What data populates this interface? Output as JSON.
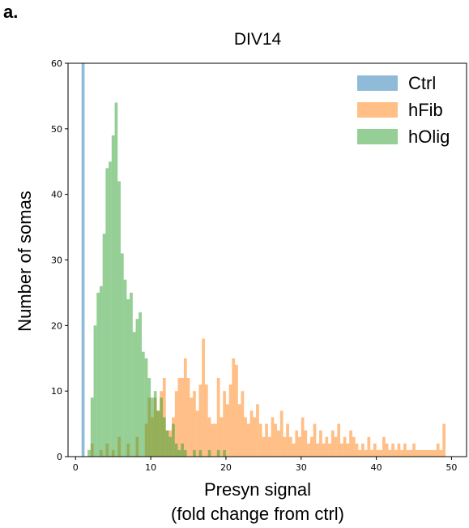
{
  "panel_label": "a.",
  "chart_data": {
    "type": "histogram",
    "title": "DIV14",
    "xlabel_line1": "Presyn signal",
    "xlabel_line2": "(fold change from ctrl)",
    "ylabel": "Number of somas",
    "xlim": [
      -1,
      52
    ],
    "ylim": [
      0,
      60
    ],
    "xticks": [
      0,
      10,
      20,
      30,
      40,
      50
    ],
    "yticks": [
      0,
      10,
      20,
      30,
      40,
      50,
      60
    ],
    "grid": false,
    "legend_position": "top-right",
    "series": [
      {
        "name": "Ctrl",
        "color": "#1f77b4",
        "bin_width": 0.4,
        "bins": [
          [
            0.8,
            60
          ]
        ]
      },
      {
        "name": "hFib",
        "color": "#ff7f0e",
        "bin_width": 0.4,
        "bins": [
          [
            2.0,
            2
          ],
          [
            3.2,
            1
          ],
          [
            4.0,
            2
          ],
          [
            4.8,
            1
          ],
          [
            5.6,
            3
          ],
          [
            6.8,
            2
          ],
          [
            8.0,
            3
          ],
          [
            9.2,
            5
          ],
          [
            9.6,
            9
          ],
          [
            10.0,
            6
          ],
          [
            10.4,
            9
          ],
          [
            10.8,
            7
          ],
          [
            11.2,
            10
          ],
          [
            11.6,
            12
          ],
          [
            12.0,
            4
          ],
          [
            12.4,
            4
          ],
          [
            12.8,
            6
          ],
          [
            13.2,
            10
          ],
          [
            13.6,
            12
          ],
          [
            14.0,
            12
          ],
          [
            14.4,
            15
          ],
          [
            14.8,
            12
          ],
          [
            15.2,
            9
          ],
          [
            15.6,
            10
          ],
          [
            16.0,
            7
          ],
          [
            16.4,
            11
          ],
          [
            16.8,
            18
          ],
          [
            17.2,
            11
          ],
          [
            17.6,
            6
          ],
          [
            18.0,
            5
          ],
          [
            18.4,
            5
          ],
          [
            18.8,
            12
          ],
          [
            19.2,
            6
          ],
          [
            19.6,
            10
          ],
          [
            20.0,
            8
          ],
          [
            20.4,
            11
          ],
          [
            20.8,
            15
          ],
          [
            21.2,
            14
          ],
          [
            21.6,
            8
          ],
          [
            22.0,
            10
          ],
          [
            22.4,
            6
          ],
          [
            22.8,
            5
          ],
          [
            23.2,
            7
          ],
          [
            23.6,
            6
          ],
          [
            24.0,
            8
          ],
          [
            24.4,
            5
          ],
          [
            24.8,
            3
          ],
          [
            25.2,
            5
          ],
          [
            25.6,
            3
          ],
          [
            26.0,
            6
          ],
          [
            26.4,
            5
          ],
          [
            26.8,
            4
          ],
          [
            27.2,
            7
          ],
          [
            27.6,
            3
          ],
          [
            28.0,
            5
          ],
          [
            28.4,
            3
          ],
          [
            28.8,
            2
          ],
          [
            29.2,
            4
          ],
          [
            29.6,
            3
          ],
          [
            30.0,
            6
          ],
          [
            30.4,
            4
          ],
          [
            30.8,
            2
          ],
          [
            31.2,
            3
          ],
          [
            31.6,
            5
          ],
          [
            32.0,
            2
          ],
          [
            32.4,
            4
          ],
          [
            32.8,
            2
          ],
          [
            33.2,
            3
          ],
          [
            33.6,
            2
          ],
          [
            34.0,
            4
          ],
          [
            34.4,
            3
          ],
          [
            34.8,
            5
          ],
          [
            35.2,
            2
          ],
          [
            35.6,
            3
          ],
          [
            36.0,
            2
          ],
          [
            36.4,
            4
          ],
          [
            36.8,
            3
          ],
          [
            37.2,
            2
          ],
          [
            37.6,
            1
          ],
          [
            38.0,
            2
          ],
          [
            38.4,
            1
          ],
          [
            38.8,
            3
          ],
          [
            39.2,
            1
          ],
          [
            39.6,
            2
          ],
          [
            40.0,
            1
          ],
          [
            40.4,
            1
          ],
          [
            40.8,
            3
          ],
          [
            41.2,
            2
          ],
          [
            41.6,
            1
          ],
          [
            42.0,
            2
          ],
          [
            42.4,
            1
          ],
          [
            42.8,
            2
          ],
          [
            43.2,
            1
          ],
          [
            43.6,
            2
          ],
          [
            44.0,
            1
          ],
          [
            44.4,
            1
          ],
          [
            44.8,
            2
          ],
          [
            45.2,
            1
          ],
          [
            45.6,
            1
          ],
          [
            46.0,
            1
          ],
          [
            46.4,
            1
          ],
          [
            46.8,
            1
          ],
          [
            47.2,
            1
          ],
          [
            47.6,
            1
          ],
          [
            48.0,
            2
          ],
          [
            48.4,
            1
          ],
          [
            48.8,
            5
          ]
        ]
      },
      {
        "name": "hOlig",
        "color": "#2ca02c",
        "bin_width": 0.4,
        "bins": [
          [
            1.6,
            1
          ],
          [
            2.0,
            9
          ],
          [
            2.4,
            20
          ],
          [
            2.8,
            25
          ],
          [
            3.2,
            26
          ],
          [
            3.6,
            34
          ],
          [
            4.0,
            44
          ],
          [
            4.4,
            45
          ],
          [
            4.8,
            49
          ],
          [
            5.2,
            54
          ],
          [
            5.6,
            42
          ],
          [
            6.0,
            31
          ],
          [
            6.4,
            27
          ],
          [
            6.8,
            24
          ],
          [
            7.2,
            25
          ],
          [
            7.6,
            19
          ],
          [
            8.0,
            21
          ],
          [
            8.4,
            22
          ],
          [
            8.8,
            16
          ],
          [
            9.2,
            15
          ],
          [
            9.6,
            12
          ],
          [
            10.0,
            9
          ],
          [
            10.4,
            10
          ],
          [
            10.8,
            7
          ],
          [
            11.2,
            9
          ],
          [
            11.6,
            6
          ],
          [
            12.0,
            4
          ],
          [
            12.4,
            3
          ],
          [
            12.8,
            5
          ],
          [
            13.2,
            2
          ],
          [
            13.6,
            1
          ],
          [
            14.0,
            2
          ],
          [
            14.4,
            1
          ],
          [
            15.6,
            1
          ],
          [
            16.4,
            1
          ],
          [
            17.6,
            1
          ],
          [
            18.8,
            1
          ],
          [
            19.6,
            1
          ]
        ]
      }
    ]
  }
}
